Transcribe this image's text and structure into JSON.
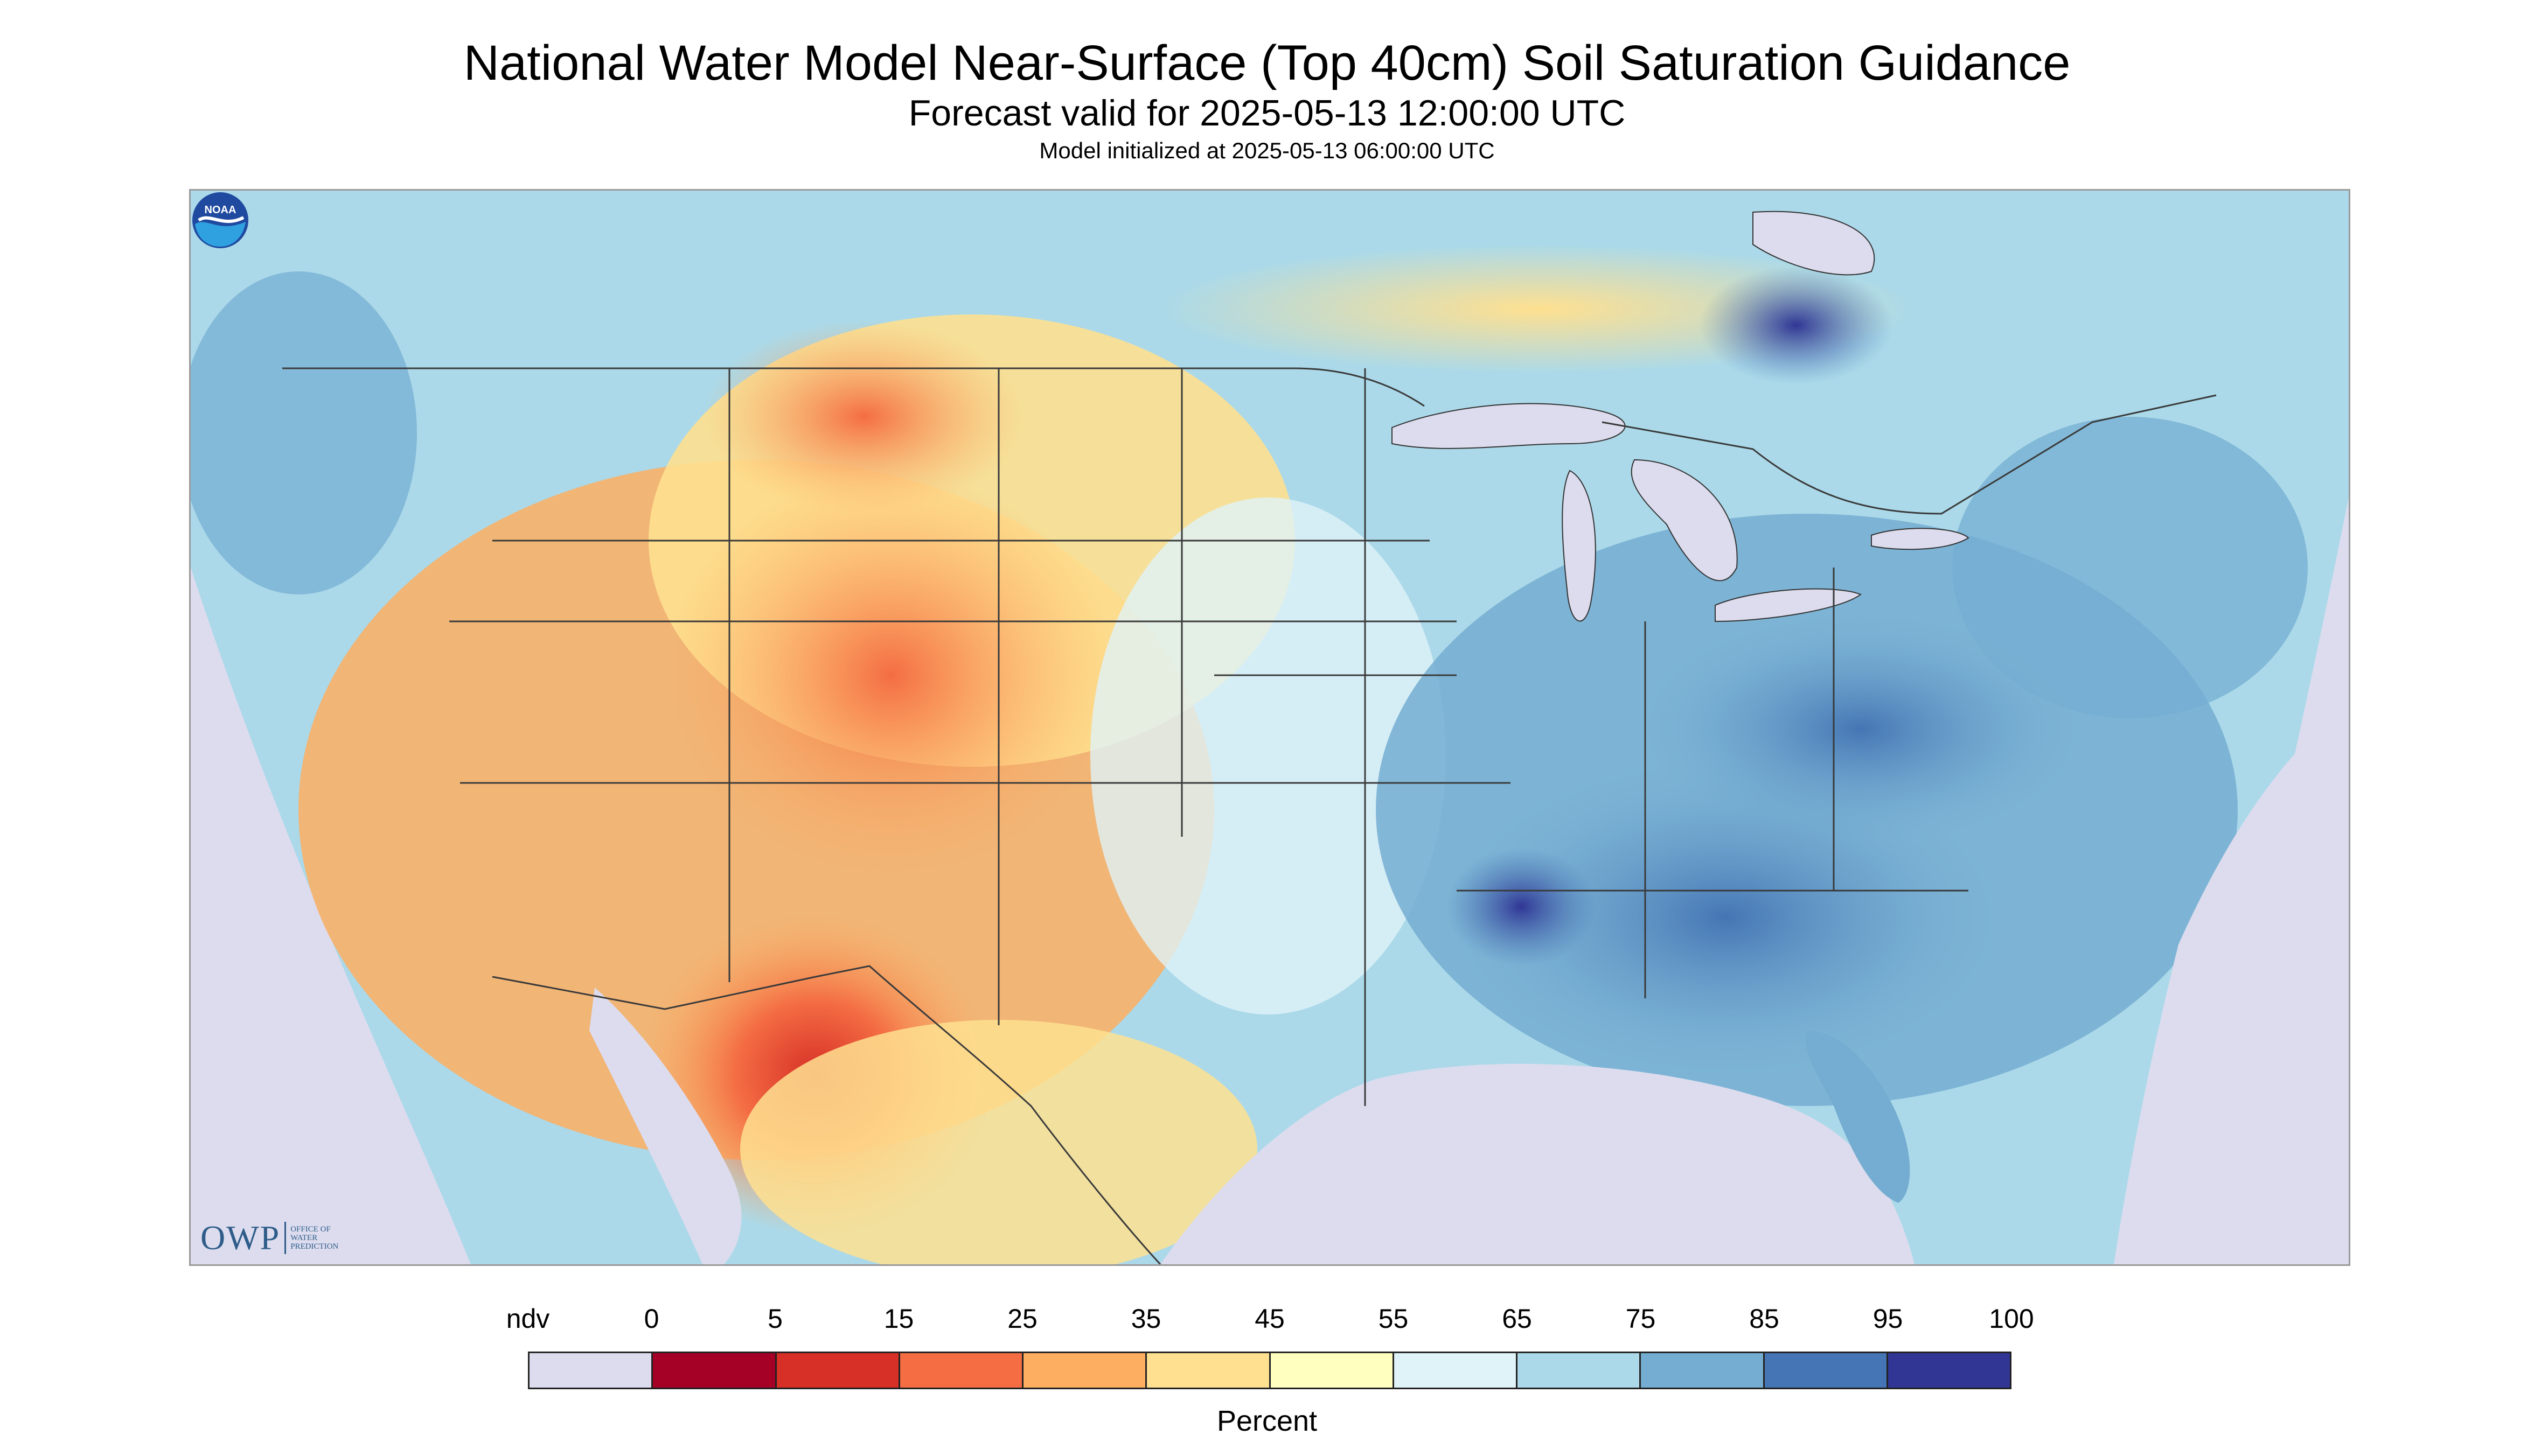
{
  "title": "National Water Model Near-Surface (Top 40cm) Soil Saturation Guidance",
  "subtitle": "Forecast valid for 2025-05-13 12:00:00 UTC",
  "init_text": "Model initialized at 2025-05-13 06:00:00 UTC",
  "logos": {
    "owp_letters": "OWP",
    "owp_lines": [
      "OFFICE OF",
      "WATER",
      "PREDICTION"
    ],
    "noaa": "NOAA"
  },
  "legend": {
    "unit": "Percent",
    "labels": [
      "ndv",
      "0",
      "5",
      "15",
      "25",
      "35",
      "45",
      "55",
      "65",
      "75",
      "85",
      "95",
      "100"
    ],
    "colors": [
      "#dcdcee",
      "#a50026",
      "#d73027",
      "#f46d43",
      "#fdae61",
      "#fee090",
      "#ffffbf",
      "#e0f3f8",
      "#abd9e9",
      "#74add1",
      "#4575b4",
      "#313695"
    ]
  },
  "map": {
    "nodata_color": "#dcdcee",
    "wet_region": "East / Southeast US (85-95%)",
    "dry_region": "Southwest US / northern Mexico (5-35%)"
  }
}
